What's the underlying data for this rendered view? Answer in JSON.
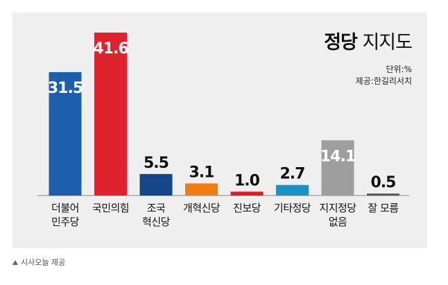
{
  "chart_data": {
    "type": "bar",
    "title_bold": "정당",
    "title_rest": "지지도",
    "unit_note": "단위:%",
    "source_note": "제공:한길리서치",
    "categories": [
      "더불어\n민주당",
      "국민의힘",
      "조국\n혁신당",
      "개혁신당",
      "진보당",
      "기타정당",
      "지지정당\n없음",
      "잘 모름"
    ],
    "values": [
      31.5,
      41.6,
      5.5,
      3.1,
      1.0,
      2.7,
      14.1,
      0.5
    ],
    "value_labels": [
      "31.5",
      "41.6",
      "5.5",
      "3.1",
      "1.0",
      "2.7",
      "14.1",
      "0.5"
    ],
    "colors": [
      "#1d5fad",
      "#e0212e",
      "#16468a",
      "#ef7d14",
      "#d8202a",
      "#1a93c4",
      "#9e9e9e",
      "#555555"
    ],
    "ylim": [
      0,
      41.6
    ],
    "grid": false,
    "legend": "none"
  },
  "caption": {
    "icon": "triangle-up-icon",
    "text": "시사오늘 제공"
  }
}
